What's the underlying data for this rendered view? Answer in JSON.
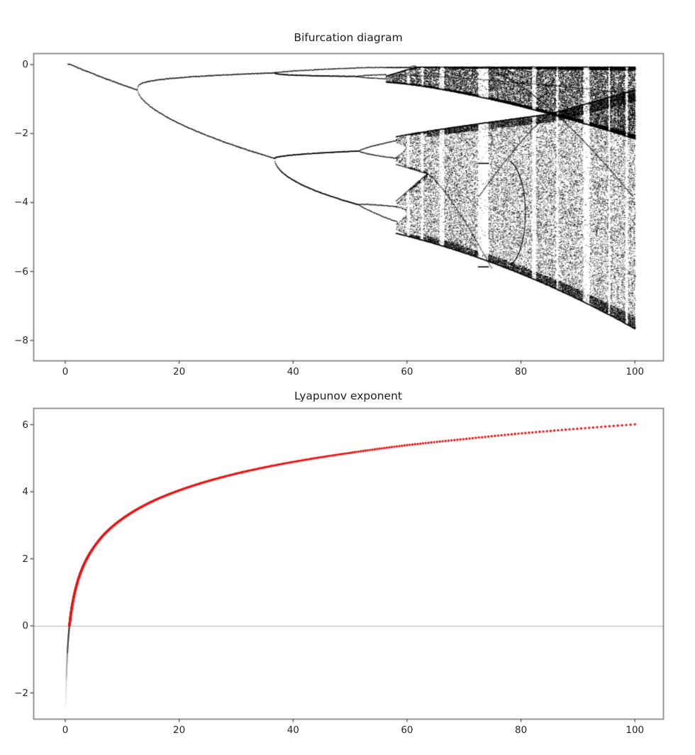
{
  "figure": {
    "background": "#ffffff",
    "text_color": "#262626",
    "frame_color": "#7a7a7a",
    "tick_color": "#4a4a4a"
  },
  "chart_data": [
    {
      "id": "bifurcation",
      "type": "scatter",
      "title": "Bifurcation diagram",
      "marker_color": "#000000",
      "xlim": [
        -5.6,
        105
      ],
      "ylim": [
        -8.58,
        0.33
      ],
      "x_ticks": {
        "values": [
          0,
          20,
          40,
          60,
          80,
          100
        ],
        "labels": [
          "0",
          "20",
          "40",
          "60",
          "80",
          "100"
        ]
      },
      "y_ticks": {
        "values": [
          0,
          -2,
          -4,
          -6,
          -8
        ],
        "labels": [
          "0",
          "−2",
          "−4",
          "−6",
          "−8"
        ]
      },
      "structure": {
        "branch_start": [
          0.35,
          0.0
        ],
        "first_bifurcation": [
          12.6,
          -0.72
        ],
        "second_bifurcation": [
          36.7,
          -2.71
        ],
        "period8_split": 51.5,
        "chaos_onset_upper": 56.3,
        "chaos_onset_lower": 58.0,
        "upper_band_top": -0.06,
        "band_merge": [
          85.0,
          -1.42
        ],
        "upper_band_bottom_at_merge": -1.42,
        "upper_band_bottom_at_100": -2.2,
        "lower_band_top_at_100": -0.72,
        "lower_envelope": [
          [
            58,
            -4.88
          ],
          [
            63.5,
            -5.12
          ],
          [
            74,
            -5.7
          ],
          [
            85,
            -6.4
          ],
          [
            100,
            -7.7
          ]
        ],
        "inner_gap_close": [
          63.5,
          -3.15
        ],
        "periodic_windows": [
          {
            "a": 60.1,
            "width": 0.5
          },
          {
            "a": 62.6,
            "width": 0.4
          },
          {
            "a": 66.1,
            "width": 0.9
          },
          {
            "a": 73.3,
            "width": 1.9,
            "orbits": [
              -0.08,
              -2.85,
              -5.85
            ]
          },
          {
            "a": 82.2,
            "width": 0.8
          },
          {
            "a": 86.3,
            "width": 0.5
          },
          {
            "a": 91.4,
            "width": 1.1
          },
          {
            "a": 95.4,
            "width": 0.4
          },
          {
            "a": 98.5,
            "width": 0.5
          }
        ]
      }
    },
    {
      "id": "lyapunov",
      "type": "line",
      "title": "Lyapunov exponent",
      "line_color": "#ec1313",
      "negative_color": "#303030",
      "zero_line_color": "#b4b4b4",
      "xlim": [
        -5.6,
        105
      ],
      "ylim": [
        -2.77,
        6.5
      ],
      "x_ticks": {
        "values": [
          0,
          20,
          40,
          60,
          80,
          100
        ],
        "labels": [
          "0",
          "20",
          "40",
          "60",
          "80",
          "100"
        ]
      },
      "y_ticks": {
        "values": [
          6,
          4,
          2,
          0,
          -2
        ],
        "labels": [
          "6",
          "4",
          "2",
          "0",
          "−2"
        ]
      },
      "series": {
        "x": [
          0.1,
          0.15,
          0.2,
          0.3,
          0.5,
          0.7,
          1,
          1.5,
          2,
          3,
          4,
          5,
          7,
          10,
          15,
          20,
          30,
          40,
          50,
          60,
          70,
          80,
          90,
          100
        ],
        "y": [
          -2.44,
          -1.95,
          -1.6,
          -1.1,
          -0.47,
          -0.06,
          0.37,
          0.87,
          1.22,
          1.72,
          2.07,
          2.34,
          2.76,
          3.19,
          3.69,
          4.04,
          4.54,
          4.89,
          5.16,
          5.39,
          5.57,
          5.74,
          5.88,
          6.01
        ]
      }
    }
  ]
}
